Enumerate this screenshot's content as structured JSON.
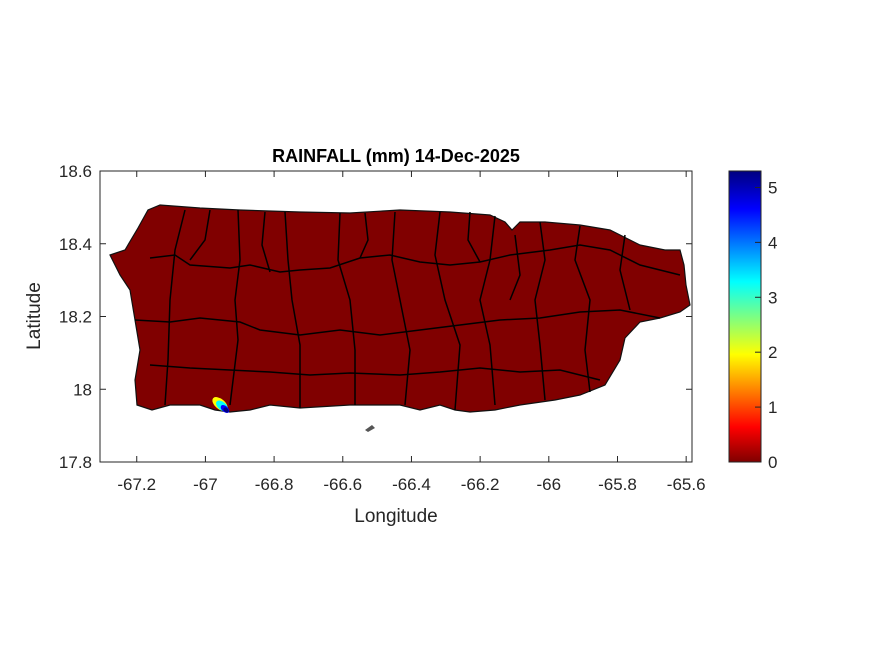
{
  "chart_data": {
    "type": "heatmap",
    "title": "RAINFALL (mm) 14-Dec-2025",
    "xlabel": "Longitude",
    "ylabel": "Latitude",
    "xlim": [
      -67.307,
      -65.583
    ],
    "ylim": [
      17.8,
      18.6
    ],
    "xticks": [
      "-67.2",
      "-67",
      "-66.8",
      "-66.6",
      "-66.4",
      "-66.2",
      "-66",
      "-65.8",
      "-65.6"
    ],
    "xtick_values": [
      -67.2,
      -67.0,
      -66.8,
      -66.6,
      -66.4,
      -66.2,
      -66.0,
      -65.8,
      -65.6
    ],
    "yticks": [
      "17.8",
      "18",
      "18.2",
      "18.4",
      "18.6"
    ],
    "ytick_values": [
      17.8,
      18.0,
      18.2,
      18.4,
      18.6
    ],
    "colorbar": {
      "colormap": "jet",
      "range": [
        0,
        5.3
      ],
      "ticks": [
        "0",
        "1",
        "2",
        "3",
        "4",
        "5"
      ],
      "tick_values": [
        0,
        1,
        2,
        3,
        4,
        5
      ]
    },
    "background_value": 0,
    "hotspot": {
      "lon": -66.95,
      "lat": 17.96,
      "max_value": 5.3
    },
    "grid": false,
    "land_color": "#800000",
    "boundary_color": "#000000"
  }
}
